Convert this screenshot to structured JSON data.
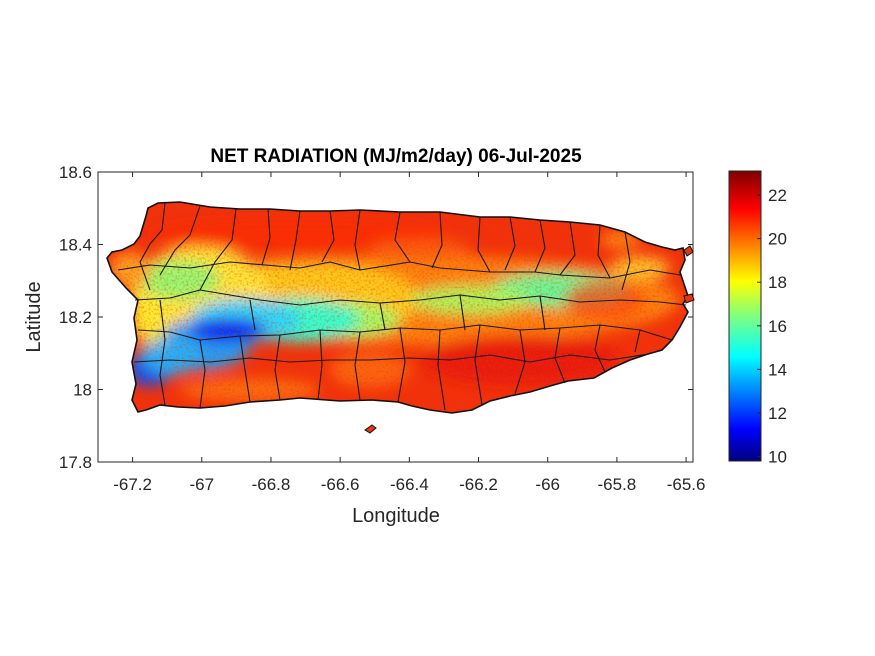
{
  "map": {
    "title": "NET RADIATION (MJ/m2/day) 06-Jul-2025",
    "xlabel": "Longitude",
    "ylabel": "Latitude",
    "xlim": [
      -67.3,
      -65.58
    ],
    "ylim": [
      17.8,
      18.6
    ],
    "xticks": [
      -67.2,
      -67,
      -66.8,
      -66.6,
      -66.4,
      -66.2,
      -66,
      -65.8,
      -65.6
    ],
    "xtick_labels": [
      "-67.2",
      "-67",
      "-66.8",
      "-66.6",
      "-66.4",
      "-66.2",
      "-66",
      "-65.8",
      "-65.6"
    ],
    "yticks": [
      17.8,
      18,
      18.2,
      18.4,
      18.6
    ],
    "ytick_labels": [
      "17.8",
      "18",
      "18.2",
      "18.4",
      "18.6"
    ],
    "colormap": "jet",
    "colorbar": {
      "min": 9.8,
      "max": 23.1,
      "ticks": [
        10,
        12,
        14,
        16,
        18,
        20,
        22
      ],
      "tick_labels": [
        "10",
        "12",
        "14",
        "16",
        "18",
        "20",
        "22"
      ]
    },
    "region": "Puerto Rico municipalities"
  }
}
